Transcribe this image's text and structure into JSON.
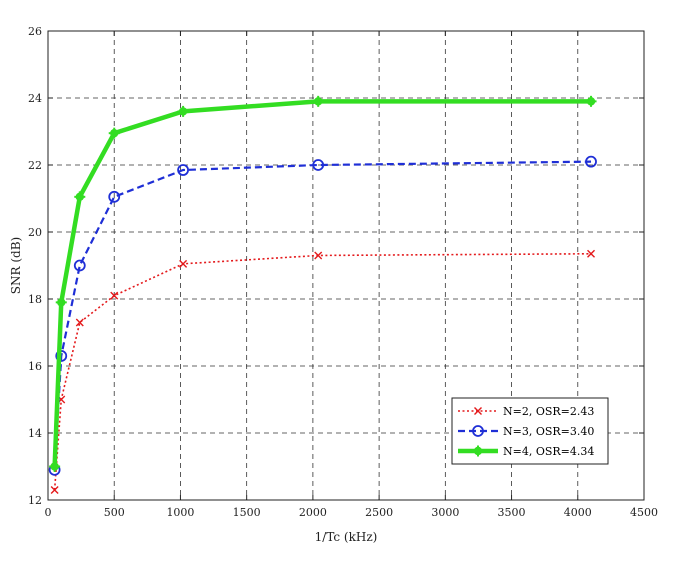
{
  "chart_data": {
    "type": "line",
    "title": "",
    "xlabel": "1/Tc (kHz)",
    "ylabel": "SNR (dB)",
    "xlim": [
      0,
      4500
    ],
    "ylim": [
      12,
      26
    ],
    "xticks": [
      0,
      500,
      1000,
      1500,
      2000,
      2500,
      3000,
      3500,
      4000,
      4500
    ],
    "yticks": [
      12,
      14,
      16,
      18,
      20,
      22,
      24,
      26
    ],
    "grid": true,
    "legend_position": "bottom-right",
    "x": [
      50,
      100,
      240,
      500,
      1020,
      2040,
      4100
    ],
    "series": [
      {
        "name": "N=2, OSR=2.43",
        "color": "#e41a1c",
        "line_style": "dotted",
        "marker": "x",
        "values": [
          12.3,
          15.0,
          17.3,
          18.1,
          19.05,
          19.3,
          19.35
        ]
      },
      {
        "name": "N=3, OSR=3.40",
        "color": "#1f2fd6",
        "line_style": "dashed",
        "marker": "circle",
        "values": [
          12.9,
          16.3,
          19.0,
          21.05,
          21.85,
          22.0,
          22.1
        ]
      },
      {
        "name": "N=4, OSR=4.34",
        "color": "#33dd22",
        "line_style": "solid",
        "marker": "star",
        "values": [
          13.0,
          17.9,
          21.05,
          22.95,
          23.6,
          23.9,
          23.9
        ]
      }
    ]
  }
}
